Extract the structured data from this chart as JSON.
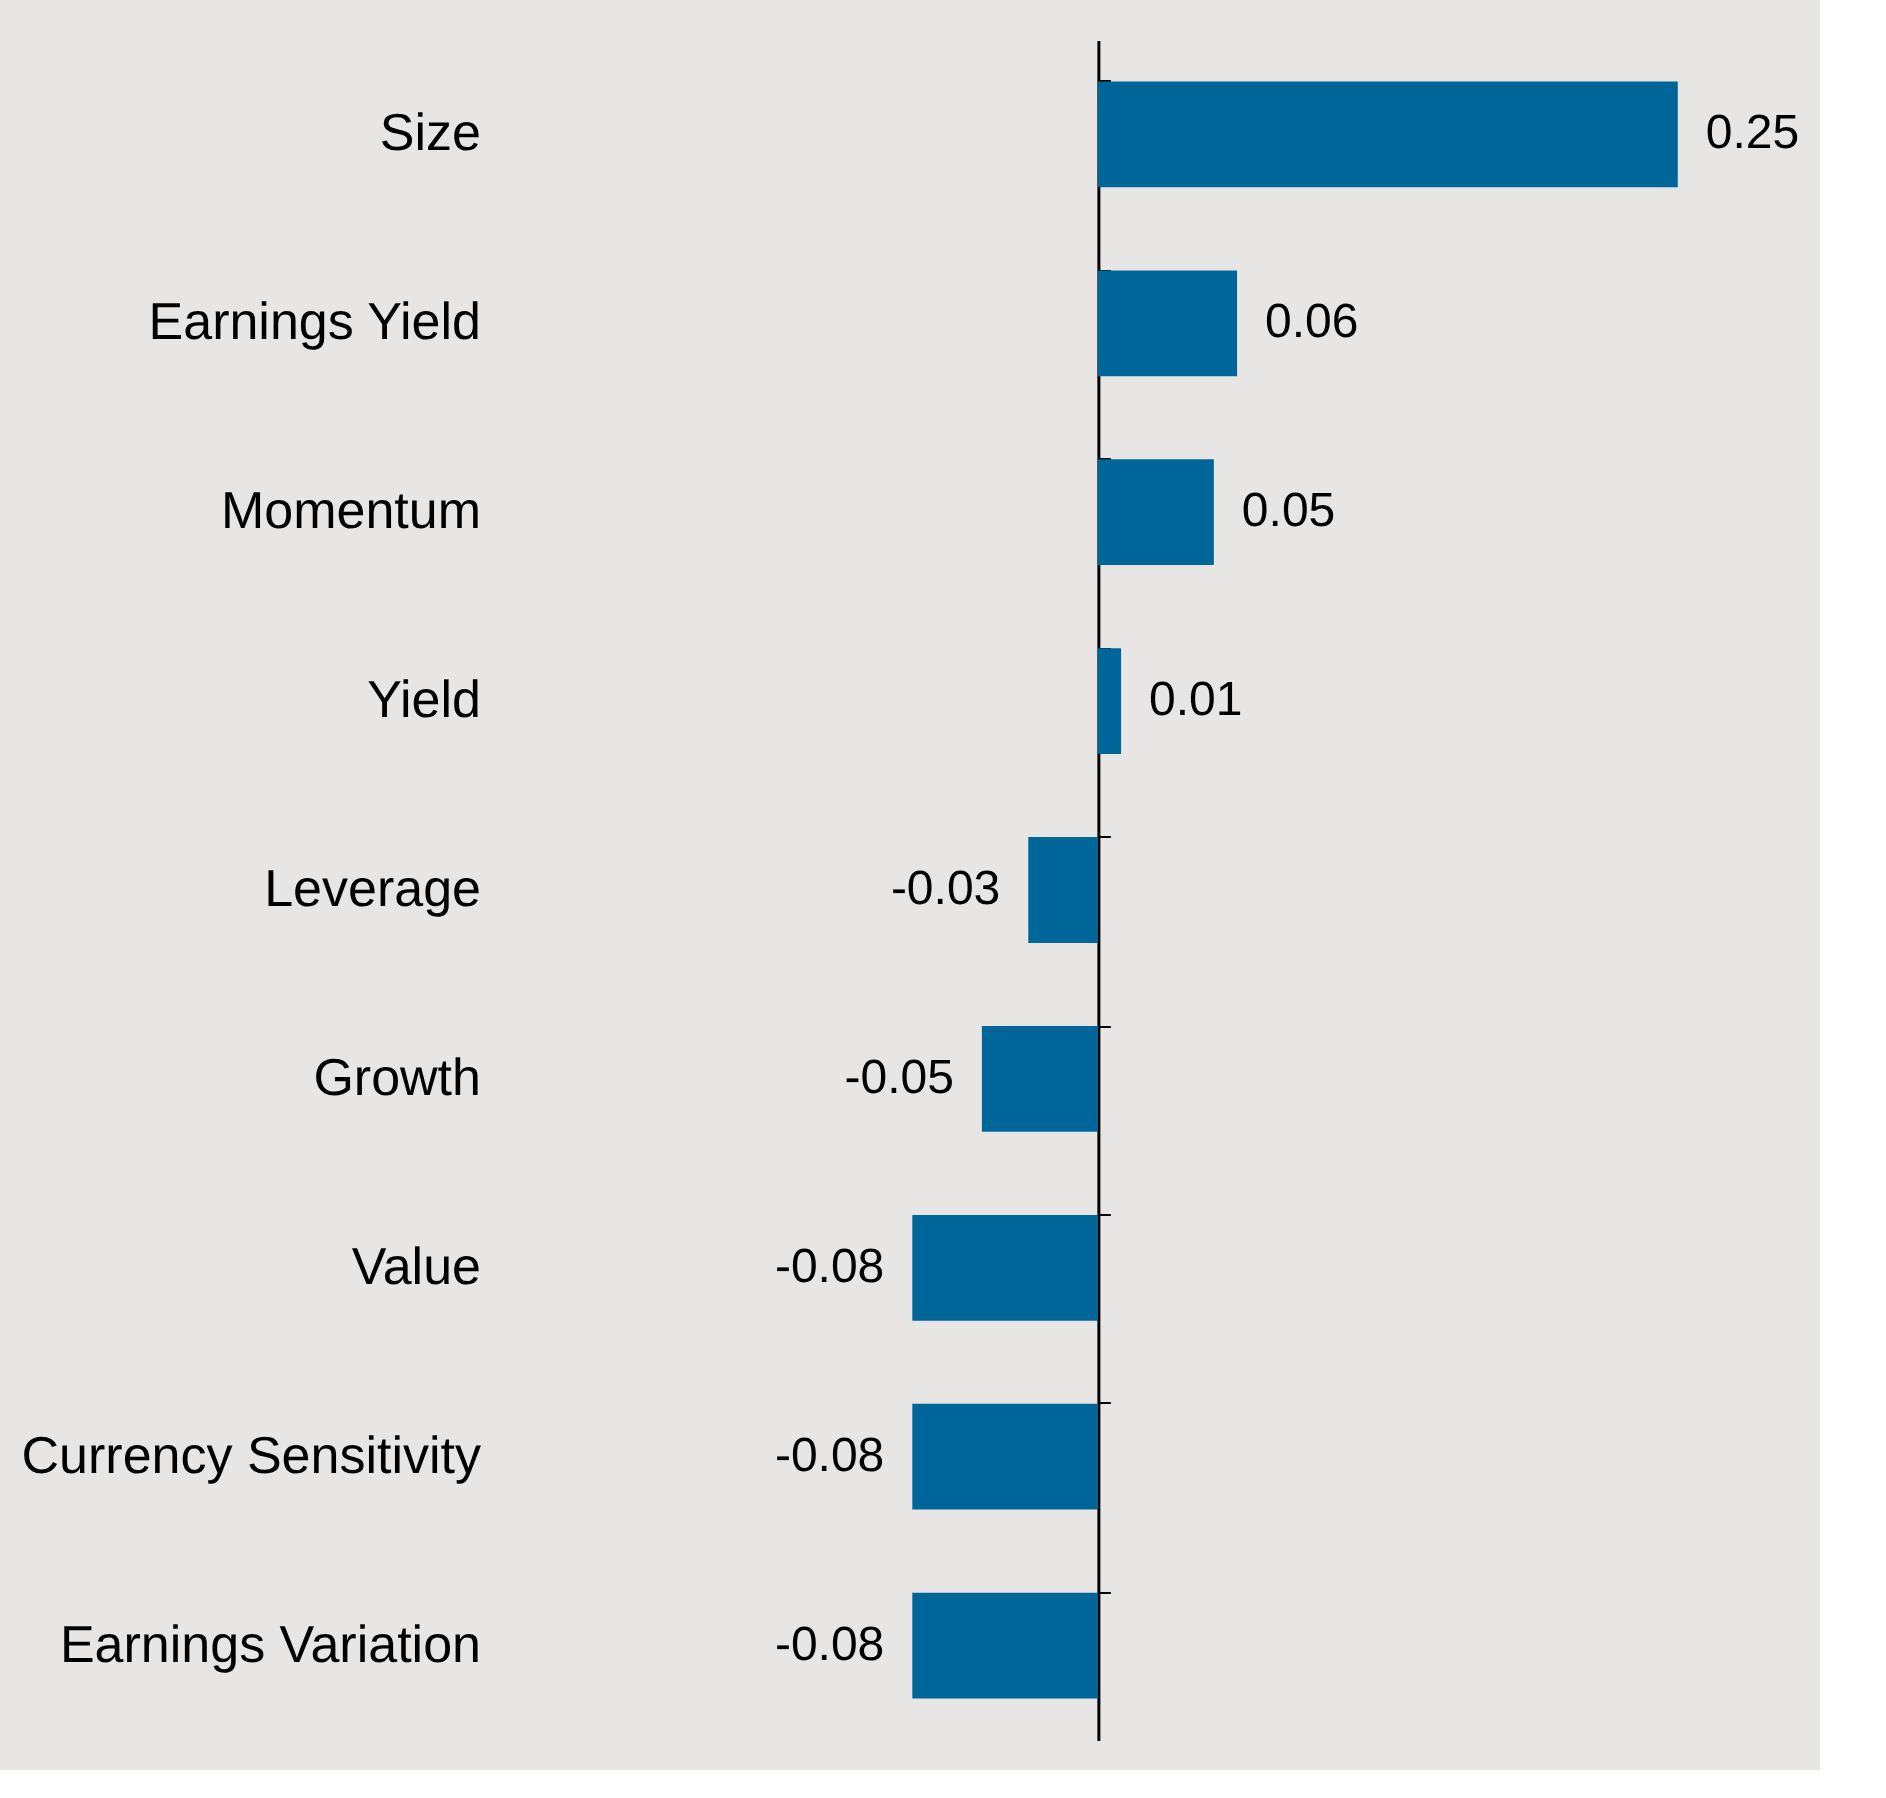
{
  "chart_data": {
    "type": "bar",
    "orientation": "horizontal",
    "categories": [
      "Size",
      "Earnings Yield",
      "Momentum",
      "Yield",
      "Leverage",
      "Growth",
      "Value",
      "Currency Sensitivity",
      "Earnings Variation"
    ],
    "values": [
      0.25,
      0.06,
      0.05,
      0.01,
      -0.03,
      -0.05,
      -0.08,
      -0.08,
      -0.08
    ],
    "color": "#00669a",
    "data_labels": true
  }
}
